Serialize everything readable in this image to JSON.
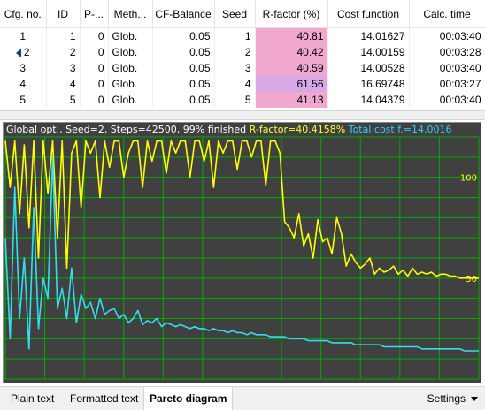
{
  "table": {
    "columns": [
      "Cfg. no.",
      "ID",
      "P-...",
      "Meth...",
      "CF-Balance",
      "Seed",
      "R-factor (%)",
      "Cost function",
      "Calc. time"
    ],
    "rows": [
      {
        "cfg": "1",
        "id": "1",
        "p": "0",
        "method": "Glob.",
        "cf_balance": "0.05",
        "seed": "1",
        "r_factor": "40.81",
        "cost": "14.01627",
        "time": "00:03:40",
        "selected": false
      },
      {
        "cfg": "2",
        "id": "2",
        "p": "0",
        "method": "Glob.",
        "cf_balance": "0.05",
        "seed": "2",
        "r_factor": "40.42",
        "cost": "14.00159",
        "time": "00:03:28",
        "selected": true
      },
      {
        "cfg": "3",
        "id": "3",
        "p": "0",
        "method": "Glob.",
        "cf_balance": "0.05",
        "seed": "3",
        "r_factor": "40.59",
        "cost": "14.00528",
        "time": "00:03:40",
        "selected": false
      },
      {
        "cfg": "4",
        "id": "4",
        "p": "0",
        "method": "Glob.",
        "cf_balance": "0.05",
        "seed": "4",
        "r_factor": "61.56",
        "cost": "16.69748",
        "time": "00:03:27",
        "selected": false
      },
      {
        "cfg": "5",
        "id": "5",
        "p": "0",
        "method": "Glob.",
        "cf_balance": "0.05",
        "seed": "5",
        "r_factor": "41.13",
        "cost": "14.04379",
        "time": "00:03:40",
        "selected": false
      }
    ]
  },
  "chart": {
    "header_info": "Global opt., Seed=2, Steps=42500, 99% finished",
    "header_rfactor": "R-factor=40.4158%",
    "header_cost": "Total cost f.=14.0016",
    "y_tick_labels": [
      "100",
      "50"
    ],
    "colors": {
      "background": "#404040",
      "grid": "#00aa00",
      "rfactor": "#ffff00",
      "cost": "#33ddee"
    }
  },
  "chart_data": {
    "type": "line",
    "title": "Global opt., Seed=2, Steps=42500, 99% finished",
    "xlabel": "",
    "ylabel": "",
    "x_range": [
      0,
      100
    ],
    "series": [
      {
        "name": "R-factor=40.4158%",
        "color": "#ffff00",
        "x": [
          0,
          1,
          2,
          3,
          4,
          5,
          6,
          7,
          8,
          9,
          10,
          11,
          12,
          13,
          14,
          15,
          16,
          17,
          18,
          19,
          20,
          21,
          22,
          23,
          24,
          25,
          26,
          27,
          28,
          29,
          30,
          31,
          32,
          33,
          34,
          35,
          36,
          37,
          38,
          39,
          40,
          41,
          42,
          43,
          44,
          45,
          46,
          47,
          48,
          49,
          50,
          51,
          52,
          53,
          54,
          55,
          56,
          57,
          58,
          59,
          60,
          61,
          62,
          63,
          64,
          65,
          66,
          67,
          68,
          69,
          70,
          71,
          72,
          73,
          74,
          75,
          76,
          77,
          78,
          79,
          80,
          81,
          82,
          83,
          84,
          85,
          86,
          87,
          88,
          89,
          90,
          91,
          92,
          93,
          94,
          95,
          96,
          97,
          98,
          99,
          100
        ],
        "y": [
          118,
          95,
          118,
          82,
          116,
          75,
          118,
          60,
          118,
          92,
          118,
          70,
          118,
          55,
          112,
          118,
          85,
          118,
          112,
          118,
          90,
          118,
          105,
          118,
          118,
          100,
          112,
          118,
          118,
          95,
          118,
          108,
          118,
          118,
          102,
          118,
          112,
          118,
          118,
          100,
          118,
          118,
          108,
          118,
          95,
          118,
          112,
          118,
          118,
          104,
          118,
          118,
          110,
          118,
          118,
          96,
          118,
          118,
          112,
          78,
          75,
          70,
          82,
          66,
          72,
          60,
          79,
          68,
          70,
          62,
          80,
          72,
          56,
          62,
          58,
          55,
          57,
          60,
          52,
          55,
          53,
          54,
          56,
          52,
          54,
          51,
          55,
          52,
          53,
          52,
          53,
          51,
          52,
          52,
          51,
          51,
          50,
          50,
          50,
          50,
          50
        ]
      },
      {
        "name": "Total cost f.=14.0016",
        "color": "#33ddee",
        "x": [
          0,
          1,
          2,
          3,
          4,
          5,
          6,
          7,
          8,
          9,
          10,
          11,
          12,
          13,
          14,
          15,
          16,
          17,
          18,
          19,
          20,
          21,
          22,
          23,
          24,
          25,
          26,
          27,
          28,
          29,
          30,
          31,
          32,
          33,
          34,
          35,
          36,
          37,
          38,
          39,
          40,
          41,
          42,
          43,
          44,
          45,
          46,
          47,
          48,
          49,
          50,
          51,
          52,
          53,
          54,
          55,
          56,
          57,
          58,
          59,
          60,
          61,
          62,
          63,
          64,
          65,
          66,
          67,
          68,
          69,
          70,
          71,
          72,
          73,
          74,
          75,
          76,
          77,
          78,
          79,
          80,
          81,
          82,
          83,
          84,
          85,
          86,
          87,
          88,
          89,
          90,
          91,
          92,
          93,
          94,
          95,
          96,
          97,
          98,
          99,
          100
        ],
        "y": [
          70,
          20,
          95,
          30,
          60,
          15,
          85,
          25,
          50,
          40,
          110,
          35,
          45,
          30,
          55,
          28,
          42,
          35,
          38,
          30,
          40,
          32,
          34,
          35,
          30,
          32,
          28,
          30,
          34,
          27,
          29,
          28,
          30,
          26,
          28,
          27,
          26,
          27,
          26,
          25,
          26,
          25,
          25,
          24,
          25,
          24,
          24,
          23,
          24,
          23,
          23,
          22,
          23,
          22,
          22,
          22,
          21,
          21,
          21,
          21,
          20,
          20,
          20,
          20,
          19,
          19,
          19,
          19,
          19,
          18,
          18,
          18,
          18,
          18,
          17,
          17,
          17,
          17,
          17,
          17,
          16,
          16,
          16,
          16,
          16,
          16,
          16,
          16,
          15,
          15,
          15,
          15,
          15,
          15,
          15,
          15,
          15,
          14,
          14,
          14,
          14
        ]
      }
    ]
  },
  "tabs": {
    "plain_text": "Plain text",
    "formatted_text": "Formatted text",
    "pareto": "Pareto diagram",
    "settings": "Settings"
  }
}
